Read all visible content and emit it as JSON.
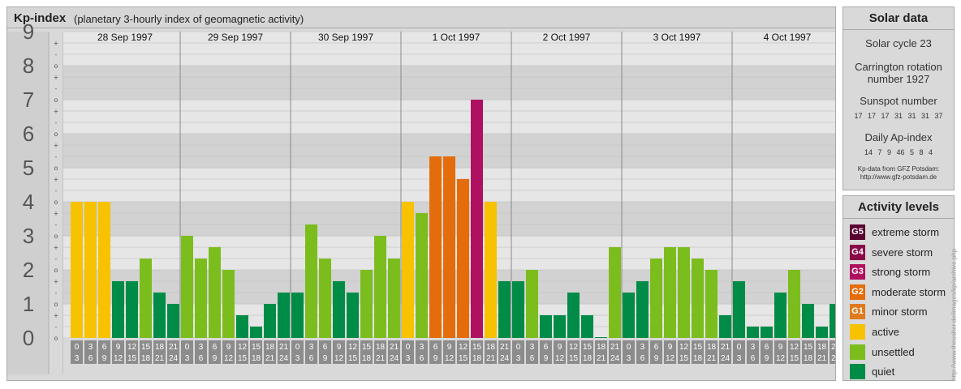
{
  "title": "Kp-index",
  "subtitle": "(planetary 3-hourly index of geomagnetic activity)",
  "chart_data": {
    "type": "bar",
    "ylim": [
      0,
      9
    ],
    "y_ticks": [
      "0",
      "1",
      "2",
      "3",
      "4",
      "5",
      "6",
      "7",
      "8",
      "9"
    ],
    "minor_marks": [
      "o",
      "-",
      "+"
    ],
    "days": [
      "28 Sep 1997",
      "29 Sep 1997",
      "30 Sep 1997",
      "1 Oct 1997",
      "2 Oct 1997",
      "3 Oct 1997",
      "4 Oct 1997"
    ],
    "interval_labels": [
      [
        "0",
        "3"
      ],
      [
        "3",
        "6"
      ],
      [
        "6",
        "9"
      ],
      [
        "9",
        "12"
      ],
      [
        "12",
        "15"
      ],
      [
        "15",
        "18"
      ],
      [
        "18",
        "21"
      ],
      [
        "21",
        "24"
      ]
    ],
    "values": [
      [
        4.0,
        4.0,
        4.0,
        1.667,
        1.667,
        2.333,
        1.333,
        1.0
      ],
      [
        3.0,
        2.333,
        2.667,
        2.0,
        0.667,
        0.333,
        1.0,
        1.333
      ],
      [
        1.333,
        3.333,
        2.333,
        1.667,
        1.333,
        2.0,
        3.0,
        2.333
      ],
      [
        4.0,
        3.667,
        5.333,
        5.333,
        4.667,
        7.0,
        4.0,
        1.667
      ],
      [
        1.667,
        2.0,
        0.667,
        0.667,
        1.333,
        0.667,
        0.0,
        2.667
      ],
      [
        1.333,
        1.667,
        2.333,
        2.667,
        2.667,
        2.333,
        2.0,
        0.667
      ],
      [
        1.667,
        0.333,
        0.333,
        1.333,
        2.0,
        1.0,
        0.333,
        1.0
      ]
    ]
  },
  "colors": {
    "quiet": "#008c46",
    "unsettled": "#7cbd1e",
    "active": "#f8c200",
    "g1": "#e07a1d",
    "g2": "#e46c0a",
    "g3": "#b01060",
    "g4": "#8a0a48",
    "g5": "#5a0030"
  },
  "solar": {
    "heading": "Solar data",
    "cycle": "Solar cycle 23",
    "carrington_1": "Carrington rotation",
    "carrington_2": "number 1927",
    "sunspot_heading": "Sunspot number",
    "sunspot_values": "17 17 17 31 31 31 37",
    "ap_heading": "Daily Ap-index",
    "ap_values": "14 7 9 46 5 8 4",
    "source_1": "Kp-data from GFZ Potsdam:",
    "source_2": "http://www.gfz-potsdam.de"
  },
  "levels": {
    "heading": "Activity levels",
    "items": [
      {
        "badge": "G5",
        "label": "extreme storm",
        "color": "#5a0030"
      },
      {
        "badge": "G4",
        "label": "severe storm",
        "color": "#8a0a48"
      },
      {
        "badge": "G3",
        "label": "strong storm",
        "color": "#b01060"
      },
      {
        "badge": "G2",
        "label": "moderate storm",
        "color": "#e46c0a"
      },
      {
        "badge": "G1",
        "label": "minor storm",
        "color": "#e07a1d"
      },
      {
        "badge": "",
        "label": "active",
        "color": "#f8c200"
      },
      {
        "badge": "",
        "label": "unsettled",
        "color": "#7cbd1e"
      },
      {
        "badge": "",
        "label": "quiet",
        "color": "#008c46"
      }
    ]
  },
  "credit": "http://www.theusher.de/images/kp/archive.php"
}
